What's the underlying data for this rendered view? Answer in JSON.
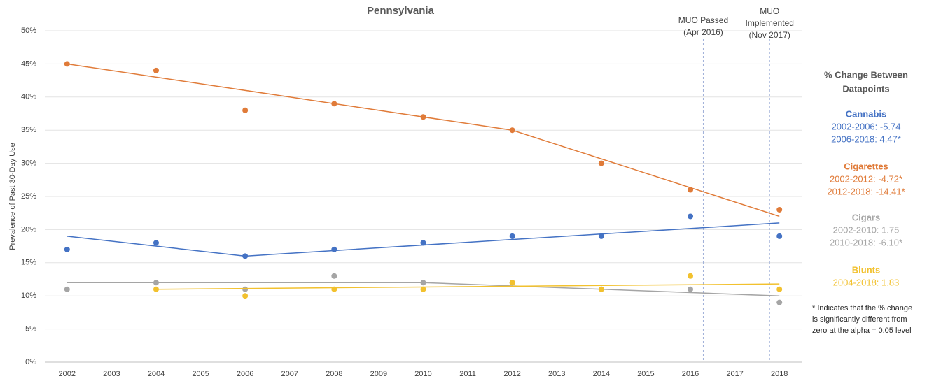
{
  "chart_data": {
    "type": "scatter",
    "title": "Pennsylvania",
    "y_label": "Prevalence of Past 30-Day Use",
    "xlim": [
      2001.5,
      2018.5
    ],
    "xticks": [
      2002,
      2003,
      2004,
      2005,
      2006,
      2007,
      2008,
      2009,
      2010,
      2011,
      2012,
      2013,
      2014,
      2015,
      2016,
      2017,
      2018
    ],
    "ylim": [
      0,
      50
    ],
    "yticks": [
      {
        "value": 0,
        "label": "0%"
      },
      {
        "value": 5,
        "label": "5%"
      },
      {
        "value": 10,
        "label": "10%"
      },
      {
        "value": 15,
        "label": "15%"
      },
      {
        "value": 20,
        "label": "20%"
      },
      {
        "value": 25,
        "label": "25%"
      },
      {
        "value": 30,
        "label": "30%"
      },
      {
        "value": 35,
        "label": "35%"
      },
      {
        "value": 40,
        "label": "40%"
      },
      {
        "value": 45,
        "label": "45%"
      },
      {
        "value": 50,
        "label": "50%"
      }
    ],
    "grid": true,
    "annotations": [
      {
        "x": 2016.29,
        "lines": [
          "MUO Passed",
          "(Apr 2016)"
        ]
      },
      {
        "x": 2017.78,
        "lines": [
          "MUO",
          "Implemented",
          "(Nov 2017)"
        ]
      }
    ],
    "panel_title": [
      "% Change Between",
      "Datapoints"
    ],
    "footnote": [
      "* Indicates that the % change",
      "is significantly different from",
      "zero at the alpha = 0.05 level"
    ],
    "series": [
      {
        "name": "Cannabis",
        "color": "#4472c4",
        "x": [
          2002,
          2004,
          2006,
          2008,
          2010,
          2012,
          2014,
          2016,
          2018
        ],
        "values": [
          17,
          18,
          16,
          17,
          18,
          19,
          19,
          22,
          19
        ],
        "trend_x": [
          2002,
          2006,
          2018
        ],
        "trend_values": [
          19,
          16,
          21
        ],
        "changes": [
          "2002-2006: -5.74",
          "2006-2018: 4.47*"
        ]
      },
      {
        "name": "Cigarettes",
        "color": "#e07b39",
        "x": [
          2002,
          2004,
          2006,
          2008,
          2010,
          2012,
          2014,
          2016,
          2018
        ],
        "values": [
          45,
          44,
          38,
          39,
          37,
          35,
          30,
          26,
          23
        ],
        "trend_x": [
          2002,
          2012,
          2018
        ],
        "trend_values": [
          45,
          35,
          22
        ],
        "changes": [
          "2002-2012: -4.72*",
          "2012-2018: -14.41*"
        ]
      },
      {
        "name": "Cigars",
        "color": "#a5a5a5",
        "x": [
          2002,
          2004,
          2006,
          2008,
          2010,
          2012,
          2014,
          2016,
          2018
        ],
        "values": [
          11,
          12,
          11,
          13,
          12,
          12,
          11,
          11,
          9
        ],
        "trend_x": [
          2002,
          2010,
          2018
        ],
        "trend_values": [
          12,
          12,
          10
        ],
        "changes": [
          "2002-2010: 1.75",
          "2010-2018: -6.10*"
        ]
      },
      {
        "name": "Blunts",
        "color": "#f2c12e",
        "x": [
          2002,
          2004,
          2006,
          2008,
          2010,
          2012,
          2014,
          2016,
          2018
        ],
        "values": [
          null,
          11,
          10,
          11,
          11,
          12,
          11,
          13,
          11
        ],
        "trend_x": [
          2004,
          2018
        ],
        "trend_values": [
          11,
          11.8
        ],
        "changes": [
          "2004-2018: 1.83"
        ]
      }
    ]
  }
}
